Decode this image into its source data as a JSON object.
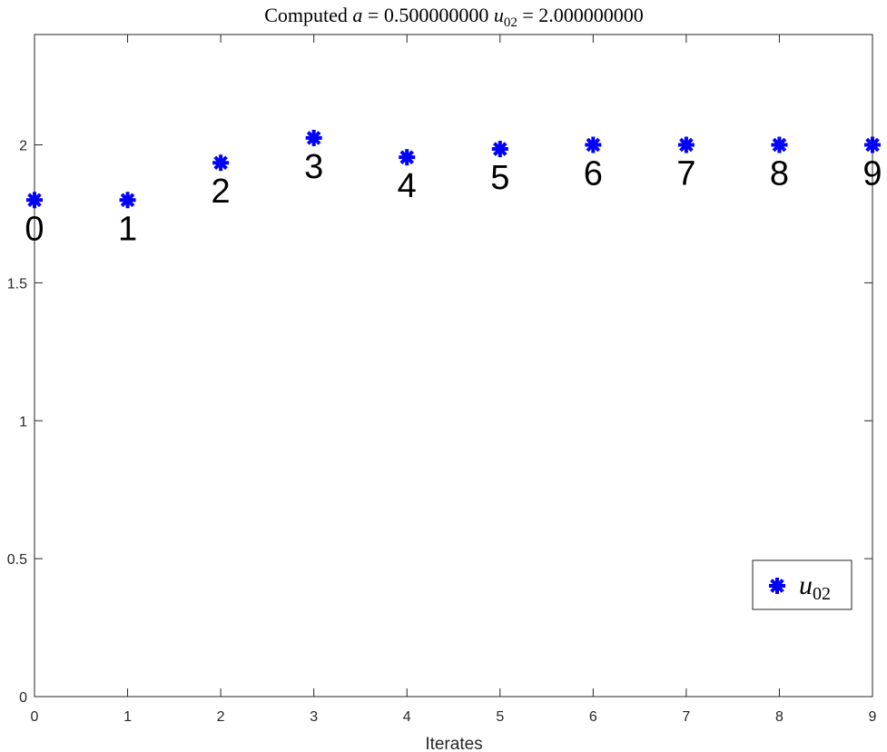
{
  "chart_data": {
    "type": "scatter",
    "title": {
      "prefix": "Computed ",
      "var_a": "a",
      "eq_a": " = 0.500000000 ",
      "var_u": "u",
      "sub_u": "02",
      "eq_u": " = 2.000000000"
    },
    "xlabel": "Iterates",
    "ylabel": "",
    "xlim": [
      0,
      9
    ],
    "ylim": [
      0,
      2.4
    ],
    "xticks": [
      0,
      1,
      2,
      3,
      4,
      5,
      6,
      7,
      8,
      9
    ],
    "yticks": [
      0,
      0.5,
      1,
      1.5,
      2
    ],
    "grid": false,
    "legend_position": "bottom-right",
    "marker_color": "#0000ff",
    "series": [
      {
        "legend": {
          "var": "u",
          "sub": "02"
        },
        "x": [
          0,
          1,
          2,
          3,
          4,
          5,
          6,
          7,
          8,
          9
        ],
        "y": [
          1.8,
          1.8,
          1.935,
          2.025,
          1.955,
          1.985,
          2.0,
          2.0,
          2.0,
          2.0
        ],
        "labels": [
          "0",
          "1",
          "2",
          "3",
          "4",
          "5",
          "6",
          "7",
          "8",
          "9"
        ]
      }
    ]
  }
}
